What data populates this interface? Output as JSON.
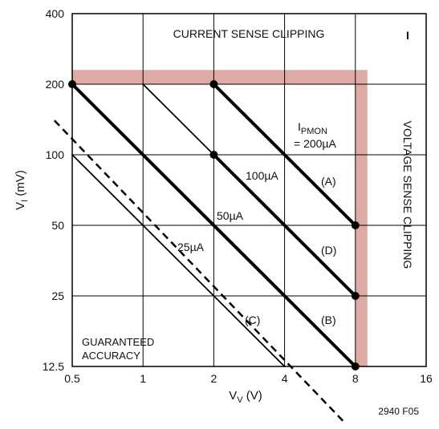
{
  "colors": {
    "clip_region": "#ddaaa6",
    "lines": "#000000",
    "grid": "#000000",
    "guarantee_line": "#000000"
  },
  "chart_data": {
    "type": "line",
    "x_scale": "log",
    "y_scale": "log",
    "xlim": [
      0.5,
      16
    ],
    "ylim": [
      12.5,
      400
    ],
    "xlabel": {
      "main": "V",
      "sub": "V",
      "unit": " (V)"
    },
    "ylabel": {
      "main": "V",
      "sub": "I",
      "unit": " (mV)"
    },
    "x_ticks": [
      {
        "value": 0.5,
        "label": "0.5"
      },
      {
        "value": 1,
        "label": "1"
      },
      {
        "value": 2,
        "label": "2"
      },
      {
        "value": 4,
        "label": "4"
      },
      {
        "value": 8,
        "label": "8"
      },
      {
        "value": 16,
        "label": "16"
      }
    ],
    "y_ticks": [
      {
        "value": 12.5,
        "label": "12.5"
      },
      {
        "value": 25,
        "label": "25"
      },
      {
        "value": 50,
        "label": "50"
      },
      {
        "value": 100,
        "label": "100"
      },
      {
        "value": 200,
        "label": "200"
      },
      {
        "value": 400,
        "label": "400"
      }
    ],
    "grid": true,
    "clipping_region": {
      "x_max": 9,
      "y_max": 230
    },
    "series": [
      {
        "name": "200µA",
        "bold": true,
        "x": [
          2,
          8
        ],
        "y": [
          200,
          50
        ],
        "markers": [
          [
            2,
            200
          ],
          [
            8,
            50
          ]
        ]
      },
      {
        "name": "100µA",
        "bold": false,
        "x": [
          1,
          8
        ],
        "y": [
          200,
          25
        ],
        "markers": [
          [
            2,
            100
          ]
        ]
      },
      {
        "name": "50µA",
        "bold": true,
        "x": [
          0.5,
          8
        ],
        "y": [
          200,
          12.5
        ],
        "markers": [
          [
            0.5,
            200
          ],
          [
            8,
            12.5
          ]
        ]
      },
      {
        "name": "25µA",
        "bold": false,
        "x": [
          0.5,
          4
        ],
        "y": [
          100,
          12.5
        ],
        "markers": []
      },
      {
        "name": "(D)",
        "bold": true,
        "x": [
          2,
          8
        ],
        "y": [
          100,
          25
        ],
        "markers": [
          [
            8,
            25
          ]
        ]
      }
    ],
    "guarantee_line": {
      "x": [
        0.42,
        7.2
      ],
      "y": [
        140,
        7.2
      ]
    },
    "annotations": {
      "current_clip": "CURRENT SENSE CLIPPING",
      "voltage_clip": "VOLTAGE SENSE CLIPPING",
      "corner_mark": "I",
      "ipmon_main": "I",
      "ipmon_sub": "PMON",
      "ipmon_value": "= 200µA",
      "label_100": "100µA",
      "label_50": "50µA",
      "label_25": "25µA",
      "label_A": "(A)",
      "label_D": "(D)",
      "label_B": "(B)",
      "label_C": "(C)",
      "guaranteed_1": "GUARANTEED",
      "guaranteed_2": "ACCURACY"
    },
    "figure_id": "2940 F05"
  }
}
